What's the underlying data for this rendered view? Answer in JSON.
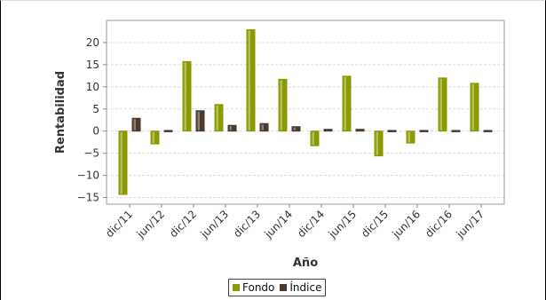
{
  "colors": {
    "fondo": "#8a9a00",
    "indice": "#4a3a2e"
  },
  "chart_data": {
    "type": "bar",
    "xlabel": "Año",
    "ylabel": "Rentabilidad",
    "ylim": [
      -16.5,
      25
    ],
    "yticks": [
      -15,
      -10,
      -5,
      0,
      5,
      10,
      15,
      20
    ],
    "grid": true,
    "legend": "bottom",
    "categories": [
      "dic/11",
      "jun/12",
      "dic/12",
      "jun/13",
      "dic/13",
      "jun/14",
      "dic/14",
      "jun/15",
      "dic/15",
      "jun/16",
      "dic/16",
      "jun/17"
    ],
    "series": [
      {
        "name": "Fondo",
        "values": [
          -14.3,
          -2.9,
          15.7,
          6.0,
          22.9,
          11.7,
          -3.3,
          12.4,
          -5.6,
          -2.7,
          12.0,
          10.8
        ]
      },
      {
        "name": "Índice",
        "values": [
          2.9,
          -0.3,
          4.6,
          1.3,
          1.7,
          1.0,
          0.4,
          0.4,
          0.1,
          0.0,
          0.3,
          -0.1
        ]
      }
    ]
  }
}
